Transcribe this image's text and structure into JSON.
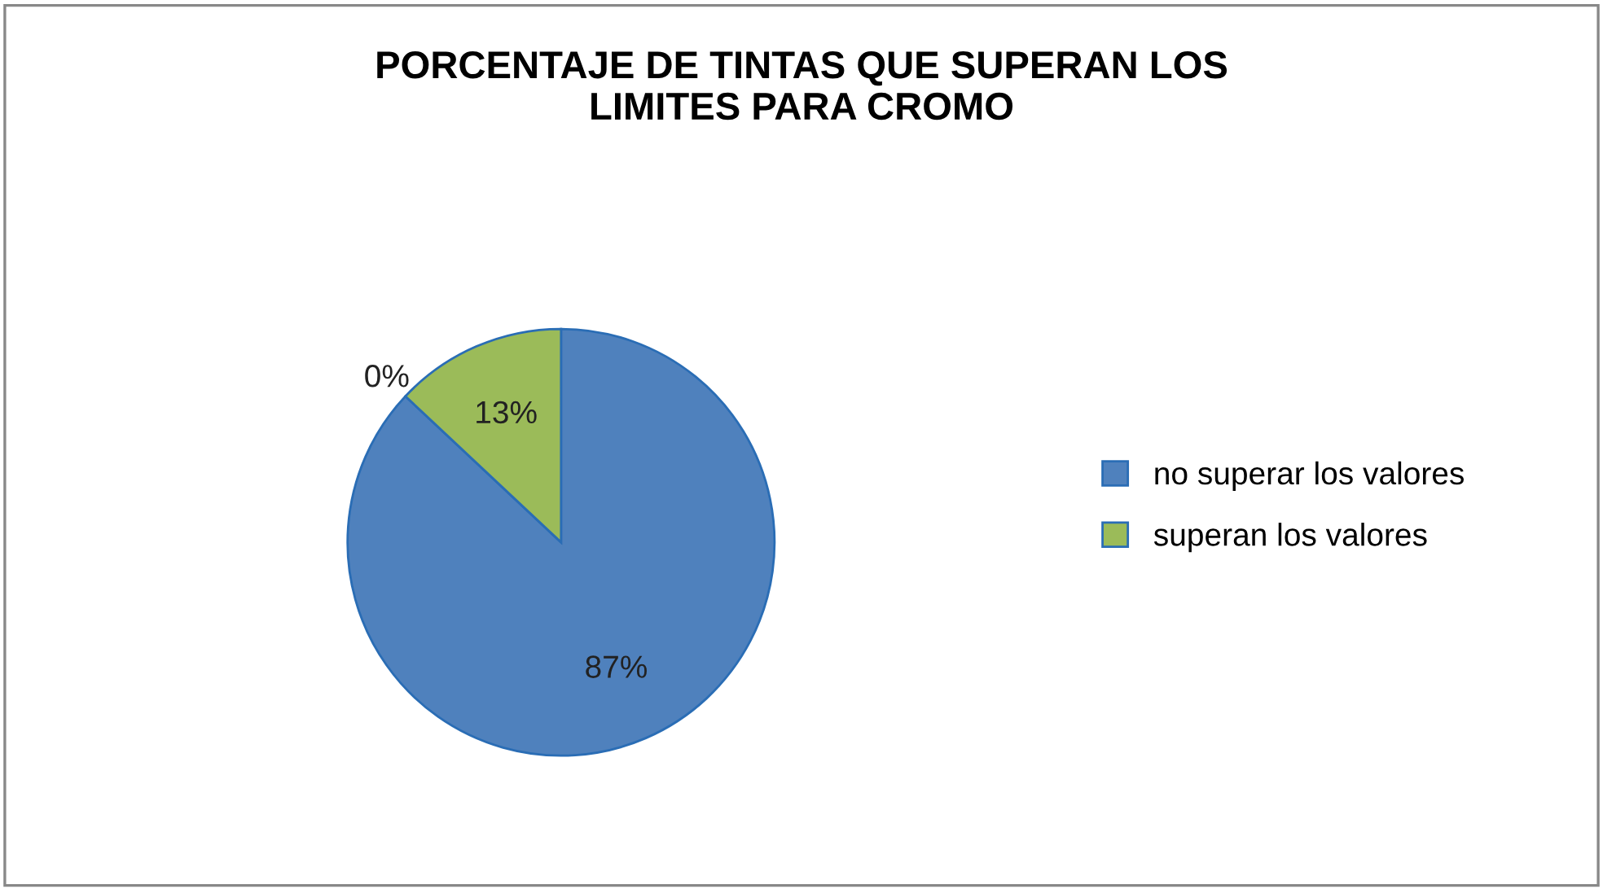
{
  "chart_data": {
    "type": "pie",
    "title": "PORCENTAJE DE TINTAS QUE SUPERAN LOS\nLIMITES PARA CROMO",
    "categories": [
      "no superar los valores",
      null,
      "superan los valores"
    ],
    "values": [
      87,
      0,
      13
    ],
    "colors": [
      "#4f81bd",
      "#c0504d",
      "#9bbb59"
    ],
    "value_labels": [
      "87%",
      "0%",
      "13%"
    ],
    "legend": "right"
  }
}
